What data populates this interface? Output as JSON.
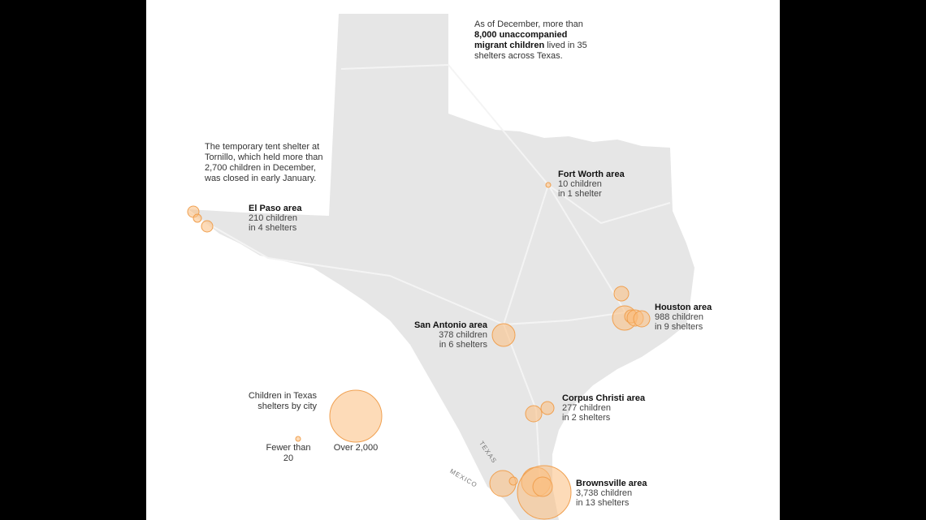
{
  "annotations": {
    "intro": {
      "before": "As of December, more than",
      "bold": "8,000 unaccompanied migrant children",
      "after": "lived in 35 shelters across Texas."
    },
    "tornillo": "The temporary tent shelter at Tornillo, which held more than 2,700 children in December, was closed in early January."
  },
  "areas": [
    {
      "name": "El Paso area",
      "children": "210 children",
      "shelters": "in 4 shelters"
    },
    {
      "name": "Fort Worth area",
      "children": "10 children",
      "shelters": "in 1 shelter"
    },
    {
      "name": "Houston area",
      "children": "988 children",
      "shelters": "in 9 shelters"
    },
    {
      "name": "San Antonio area",
      "children": "378 children",
      "shelters": "in 6 shelters"
    },
    {
      "name": "Corpus Christi area",
      "children": "277 children",
      "shelters": "in 2 shelters"
    },
    {
      "name": "Brownsville area",
      "children": "3,738 children",
      "shelters": "in 13 shelters"
    }
  ],
  "legend": {
    "title": "Children in Texas shelters by city",
    "small": "Fewer than 20",
    "large": "Over 2,000"
  },
  "labels": {
    "texas": "TEXAS",
    "mexico": "MEXICO"
  }
}
